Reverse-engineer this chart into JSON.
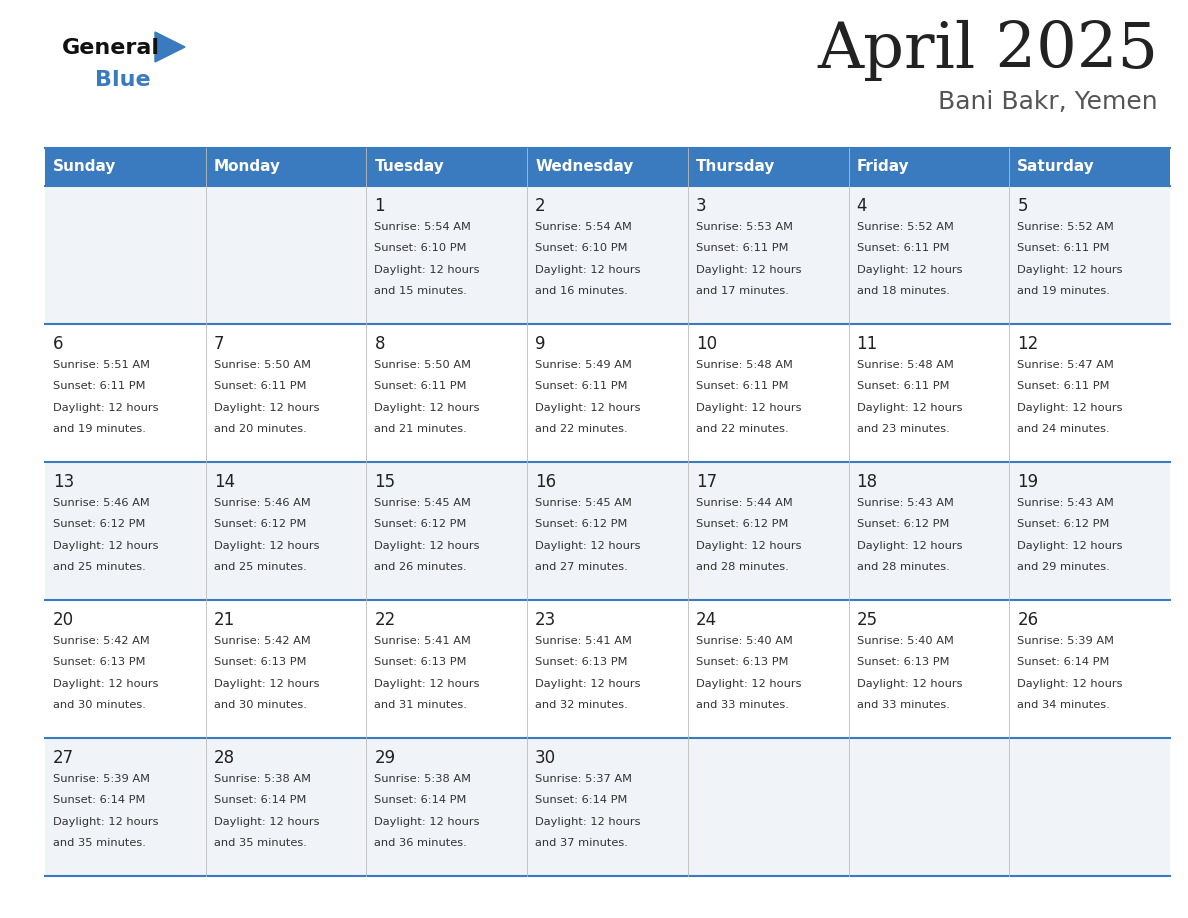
{
  "title": "April 2025",
  "subtitle": "Bani Bakr, Yemen",
  "days_of_week": [
    "Sunday",
    "Monday",
    "Tuesday",
    "Wednesday",
    "Thursday",
    "Friday",
    "Saturday"
  ],
  "header_bg": "#3a7abf",
  "header_text": "#ffffff",
  "row_bg_odd": "#f0f4f8",
  "row_bg_even": "#ffffff",
  "border_color": "#3a7abf",
  "text_color": "#333333",
  "day_num_color": "#222222",
  "cell_data": [
    [
      {
        "day": "",
        "sunrise": "",
        "sunset": "",
        "daylight": ""
      },
      {
        "day": "",
        "sunrise": "",
        "sunset": "",
        "daylight": ""
      },
      {
        "day": "1",
        "sunrise": "5:54 AM",
        "sunset": "6:10 PM",
        "daylight": "12 hours and 15 minutes."
      },
      {
        "day": "2",
        "sunrise": "5:54 AM",
        "sunset": "6:10 PM",
        "daylight": "12 hours and 16 minutes."
      },
      {
        "day": "3",
        "sunrise": "5:53 AM",
        "sunset": "6:11 PM",
        "daylight": "12 hours and 17 minutes."
      },
      {
        "day": "4",
        "sunrise": "5:52 AM",
        "sunset": "6:11 PM",
        "daylight": "12 hours and 18 minutes."
      },
      {
        "day": "5",
        "sunrise": "5:52 AM",
        "sunset": "6:11 PM",
        "daylight": "12 hours and 19 minutes."
      }
    ],
    [
      {
        "day": "6",
        "sunrise": "5:51 AM",
        "sunset": "6:11 PM",
        "daylight": "12 hours and 19 minutes."
      },
      {
        "day": "7",
        "sunrise": "5:50 AM",
        "sunset": "6:11 PM",
        "daylight": "12 hours and 20 minutes."
      },
      {
        "day": "8",
        "sunrise": "5:50 AM",
        "sunset": "6:11 PM",
        "daylight": "12 hours and 21 minutes."
      },
      {
        "day": "9",
        "sunrise": "5:49 AM",
        "sunset": "6:11 PM",
        "daylight": "12 hours and 22 minutes."
      },
      {
        "day": "10",
        "sunrise": "5:48 AM",
        "sunset": "6:11 PM",
        "daylight": "12 hours and 22 minutes."
      },
      {
        "day": "11",
        "sunrise": "5:48 AM",
        "sunset": "6:11 PM",
        "daylight": "12 hours and 23 minutes."
      },
      {
        "day": "12",
        "sunrise": "5:47 AM",
        "sunset": "6:11 PM",
        "daylight": "12 hours and 24 minutes."
      }
    ],
    [
      {
        "day": "13",
        "sunrise": "5:46 AM",
        "sunset": "6:12 PM",
        "daylight": "12 hours and 25 minutes."
      },
      {
        "day": "14",
        "sunrise": "5:46 AM",
        "sunset": "6:12 PM",
        "daylight": "12 hours and 25 minutes."
      },
      {
        "day": "15",
        "sunrise": "5:45 AM",
        "sunset": "6:12 PM",
        "daylight": "12 hours and 26 minutes."
      },
      {
        "day": "16",
        "sunrise": "5:45 AM",
        "sunset": "6:12 PM",
        "daylight": "12 hours and 27 minutes."
      },
      {
        "day": "17",
        "sunrise": "5:44 AM",
        "sunset": "6:12 PM",
        "daylight": "12 hours and 28 minutes."
      },
      {
        "day": "18",
        "sunrise": "5:43 AM",
        "sunset": "6:12 PM",
        "daylight": "12 hours and 28 minutes."
      },
      {
        "day": "19",
        "sunrise": "5:43 AM",
        "sunset": "6:12 PM",
        "daylight": "12 hours and 29 minutes."
      }
    ],
    [
      {
        "day": "20",
        "sunrise": "5:42 AM",
        "sunset": "6:13 PM",
        "daylight": "12 hours and 30 minutes."
      },
      {
        "day": "21",
        "sunrise": "5:42 AM",
        "sunset": "6:13 PM",
        "daylight": "12 hours and 30 minutes."
      },
      {
        "day": "22",
        "sunrise": "5:41 AM",
        "sunset": "6:13 PM",
        "daylight": "12 hours and 31 minutes."
      },
      {
        "day": "23",
        "sunrise": "5:41 AM",
        "sunset": "6:13 PM",
        "daylight": "12 hours and 32 minutes."
      },
      {
        "day": "24",
        "sunrise": "5:40 AM",
        "sunset": "6:13 PM",
        "daylight": "12 hours and 33 minutes."
      },
      {
        "day": "25",
        "sunrise": "5:40 AM",
        "sunset": "6:13 PM",
        "daylight": "12 hours and 33 minutes."
      },
      {
        "day": "26",
        "sunrise": "5:39 AM",
        "sunset": "6:14 PM",
        "daylight": "12 hours and 34 minutes."
      }
    ],
    [
      {
        "day": "27",
        "sunrise": "5:39 AM",
        "sunset": "6:14 PM",
        "daylight": "12 hours and 35 minutes."
      },
      {
        "day": "28",
        "sunrise": "5:38 AM",
        "sunset": "6:14 PM",
        "daylight": "12 hours and 35 minutes."
      },
      {
        "day": "29",
        "sunrise": "5:38 AM",
        "sunset": "6:14 PM",
        "daylight": "12 hours and 36 minutes."
      },
      {
        "day": "30",
        "sunrise": "5:37 AM",
        "sunset": "6:14 PM",
        "daylight": "12 hours and 37 minutes."
      },
      {
        "day": "",
        "sunrise": "",
        "sunset": "",
        "daylight": ""
      },
      {
        "day": "",
        "sunrise": "",
        "sunset": "",
        "daylight": ""
      },
      {
        "day": "",
        "sunrise": "",
        "sunset": "",
        "daylight": ""
      }
    ]
  ]
}
